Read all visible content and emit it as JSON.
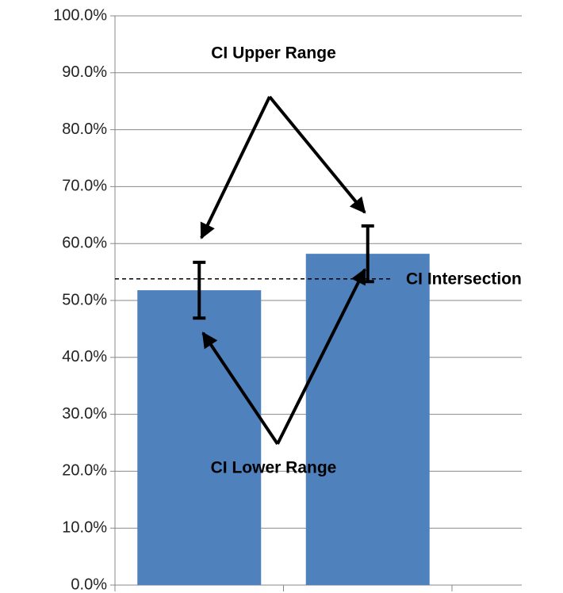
{
  "chart_data": {
    "type": "bar",
    "categories": [
      null,
      null
    ],
    "values": [
      51.8,
      58.2
    ],
    "errors": [
      4.9,
      4.9
    ],
    "color": "#4f81bd",
    "ylim": [
      0,
      100
    ],
    "yticks": [
      {
        "value": 0,
        "label": "0.0%"
      },
      {
        "value": 10,
        "label": "10.0%"
      },
      {
        "value": 20,
        "label": "20.0%"
      },
      {
        "value": 30,
        "label": "30.0%"
      },
      {
        "value": 40,
        "label": "40.0%"
      },
      {
        "value": 50,
        "label": "50.0%"
      },
      {
        "value": 60,
        "label": "60.0%"
      },
      {
        "value": 70,
        "label": "70.0%"
      },
      {
        "value": 80,
        "label": "80.0%"
      },
      {
        "value": 90,
        "label": "90.0%"
      },
      {
        "value": 100,
        "label": "100.0%"
      }
    ],
    "grid": true,
    "reference_line": {
      "value": 53.8,
      "label": "CI Intersection"
    },
    "annotations": [
      "CI Upper Range",
      "CI Lower Range"
    ]
  }
}
